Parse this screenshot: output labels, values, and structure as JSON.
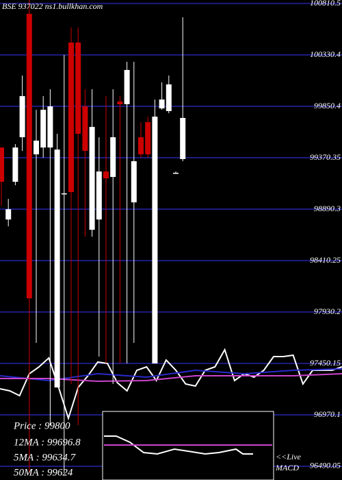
{
  "chart_data": {
    "type": "candlestick",
    "title": "BSE 937022  ns1.bullkhan.com",
    "ylim": [
      96362,
      100843
    ],
    "yticks": [
      100810.5,
      100330.4,
      99850.4,
      99370.35,
      98890.3,
      98410.25,
      97930.2,
      97450.15,
      96970.1,
      96490.05
    ],
    "grid": true,
    "grid_color": "#1c1c80",
    "up_color": "#ffffff",
    "down_color": "#cc0000",
    "open": [
      99466,
      98794,
      99146,
      99562,
      100714,
      99402,
      99466,
      99466,
      97226,
      99038,
      100446,
      100446,
      99850,
      98698,
      98794,
      99242,
      99191,
      99895,
      99870,
      98954,
      99562,
      99703,
      97450,
      99831,
      99806,
      99230,
      99358
    ],
    "high": [
      99466,
      98986,
      99498,
      100138,
      100842,
      99818,
      99946,
      100010,
      99594,
      100330,
      100586,
      100586,
      100010,
      100010,
      99562,
      99946,
      100010,
      99946,
      100266,
      100266,
      99703,
      99754,
      99914,
      100074,
      100138,
      99242,
      100682
    ],
    "low": [
      98922,
      98730,
      99114,
      99434,
      96426,
      97642,
      99370,
      96874,
      97226,
      96426,
      97258,
      96874,
      98634,
      98634,
      97514,
      97450,
      97258,
      97450,
      97450,
      97642,
      99370,
      99370,
      97450,
      99818,
      99786,
      99230,
      99338
    ],
    "close": [
      99146,
      98890,
      99466,
      99946,
      98058,
      99530,
      99818,
      99850,
      99447,
      99038,
      99050,
      99594,
      99434,
      99658,
      99242,
      99178,
      99562,
      99870,
      100190,
      99338,
      99402,
      99402,
      99754,
      99914,
      100055,
      99230,
      99742
    ],
    "lines": [
      {
        "color": "#ffffff",
        "values": [
          97213.4,
          97194.2,
          97149.4,
          97354.2,
          97418.2,
          97501.4,
          97226.1,
          96938.1,
          97226.1,
          97335.0,
          97463.0,
          97450.2,
          97271.0,
          97194.2,
          97386.2,
          97418.2,
          97290.2,
          97482.2,
          97386.2,
          97258.1,
          97238.9,
          97386.2,
          97418.2,
          97578.2,
          97290.2,
          97354.2,
          97322.2,
          97386.2,
          97514.2,
          97514.2,
          97527.0,
          97258.1,
          97386.2,
          97386.2,
          97386.2,
          97418.2
        ]
      },
      {
        "color": "#2a2acc",
        "values": [
          97335.0,
          97290.2,
          97354.2,
          97322.2,
          97386.2,
          97354.2,
          97386.2,
          97399.0
        ]
      },
      {
        "color": "#cc44cc",
        "values": [
          97309.4,
          97309.4,
          97284.0,
          97290.2,
          97335.0,
          97335.0,
          97335.0,
          97354.2
        ]
      }
    ],
    "info": [
      "Price  : 99800",
      "12MA : 99696.8",
      "5MA : 99634.7",
      "50MA : 99624"
    ],
    "macd_labels": [
      "<<Live",
      "MACD"
    ]
  }
}
